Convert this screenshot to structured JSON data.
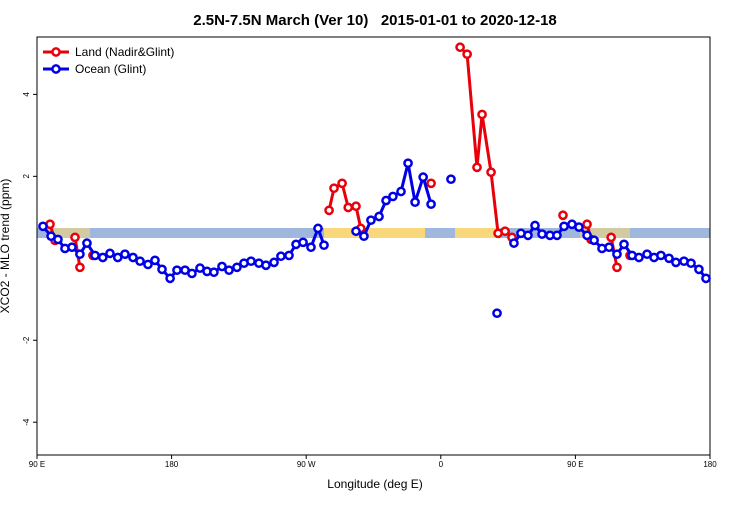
{
  "chart_data": {
    "type": "line",
    "title": "2.5N-7.5N March (Ver 10)   2015-01-01 to 2020-12-18",
    "xlabel": "Longitude (deg E)",
    "ylabel": "XCO2 - MLO trend (ppm)",
    "xlim": [
      90,
      540
    ],
    "xticks": [
      {
        "value": 90,
        "label": "90 E"
      },
      {
        "value": 180,
        "label": "180"
      },
      {
        "value": 270,
        "label": "90 W"
      },
      {
        "value": 360,
        "label": "0"
      },
      {
        "value": 450,
        "label": "90 E"
      },
      {
        "value": 540,
        "label": "180"
      }
    ],
    "ylim": [
      -4.8,
      5.4
    ],
    "yticks": [
      -4,
      -2,
      2,
      4
    ],
    "legend": "top-left",
    "series": [
      {
        "name": "Land (Nadir&Glint)",
        "color": "#e8000b",
        "x": [
          98.7,
          102,
          108,
          115.4,
          118.7,
          123,
          127.4,
          200,
          285.3,
          288.6,
          294,
          298.1,
          303.3,
          306.5,
          330,
          353.5,
          365,
          372.9,
          377.6,
          384.2,
          387.6,
          393.6,
          398.3,
          403,
          407.6,
          425,
          441.7,
          450,
          457.8,
          460.5,
          467,
          473.9,
          477.8,
          482,
          486.5
        ],
        "values": [
          0.83,
          0.44,
          null,
          0.51,
          -0.22,
          null,
          0.07,
          null,
          1.17,
          1.71,
          1.83,
          1.24,
          1.27,
          0.73,
          null,
          1.83,
          null,
          5.15,
          4.98,
          2.22,
          3.51,
          2.1,
          0.61,
          0.66,
          0.51,
          null,
          1.05,
          null,
          0.83,
          0.46,
          null,
          0.51,
          -0.22,
          null,
          0.07
        ]
      },
      {
        "name": "Ocean (Glint)",
        "color": "#0000e6",
        "x": [
          94,
          99.4,
          104,
          108.7,
          113.4,
          118.7,
          123.4,
          128.8,
          134,
          138.8,
          144,
          148.8,
          154.2,
          158.9,
          164.2,
          168.9,
          173.6,
          179,
          183.6,
          189,
          193.6,
          199,
          203.7,
          208.3,
          213.7,
          218.4,
          223.7,
          228.4,
          233.1,
          238.4,
          243.1,
          248.5,
          253.1,
          258.5,
          263.2,
          267.9,
          273.2,
          277.9,
          281.9,
          292,
          303.3,
          308.6,
          313.3,
          318.7,
          323.4,
          328,
          333.4,
          338.1,
          342.8,
          348.2,
          353.5,
          360,
          366.8,
          380,
          397.6,
          403,
          408.9,
          413.6,
          418.3,
          423,
          427.7,
          433,
          437.7,
          442.4,
          447.7,
          452.4,
          457.8,
          462.5,
          467.8,
          472.5,
          477.8,
          482.5,
          487.9,
          492.5,
          497.9,
          502.6,
          507.2,
          512.6,
          517.2,
          522.6,
          527.3,
          532.6,
          537.3
        ],
        "values": [
          0.78,
          0.54,
          0.46,
          0.24,
          0.27,
          0.1,
          0.37,
          0.07,
          0.02,
          0.12,
          0.02,
          0.1,
          0.02,
          -0.07,
          -0.15,
          -0.05,
          -0.27,
          -0.49,
          -0.29,
          -0.29,
          -0.37,
          -0.24,
          -0.32,
          -0.34,
          -0.2,
          -0.29,
          -0.22,
          -0.12,
          -0.07,
          -0.12,
          -0.17,
          -0.1,
          0.05,
          0.07,
          0.34,
          0.39,
          0.27,
          0.73,
          0.32,
          null,
          0.66,
          0.54,
          0.93,
          1.02,
          1.41,
          1.51,
          1.63,
          2.32,
          1.37,
          1.98,
          1.32,
          null,
          1.93,
          null,
          -1.34,
          null,
          0.37,
          0.61,
          0.56,
          0.8,
          0.59,
          0.56,
          0.56,
          0.78,
          0.83,
          0.76,
          0.56,
          0.44,
          0.24,
          0.27,
          0.1,
          0.34,
          0.07,
          0.02,
          0.1,
          0.02,
          0.07,
          0,
          -0.1,
          -0.07,
          -0.12,
          -0.27,
          -0.49
        ]
      }
    ]
  }
}
